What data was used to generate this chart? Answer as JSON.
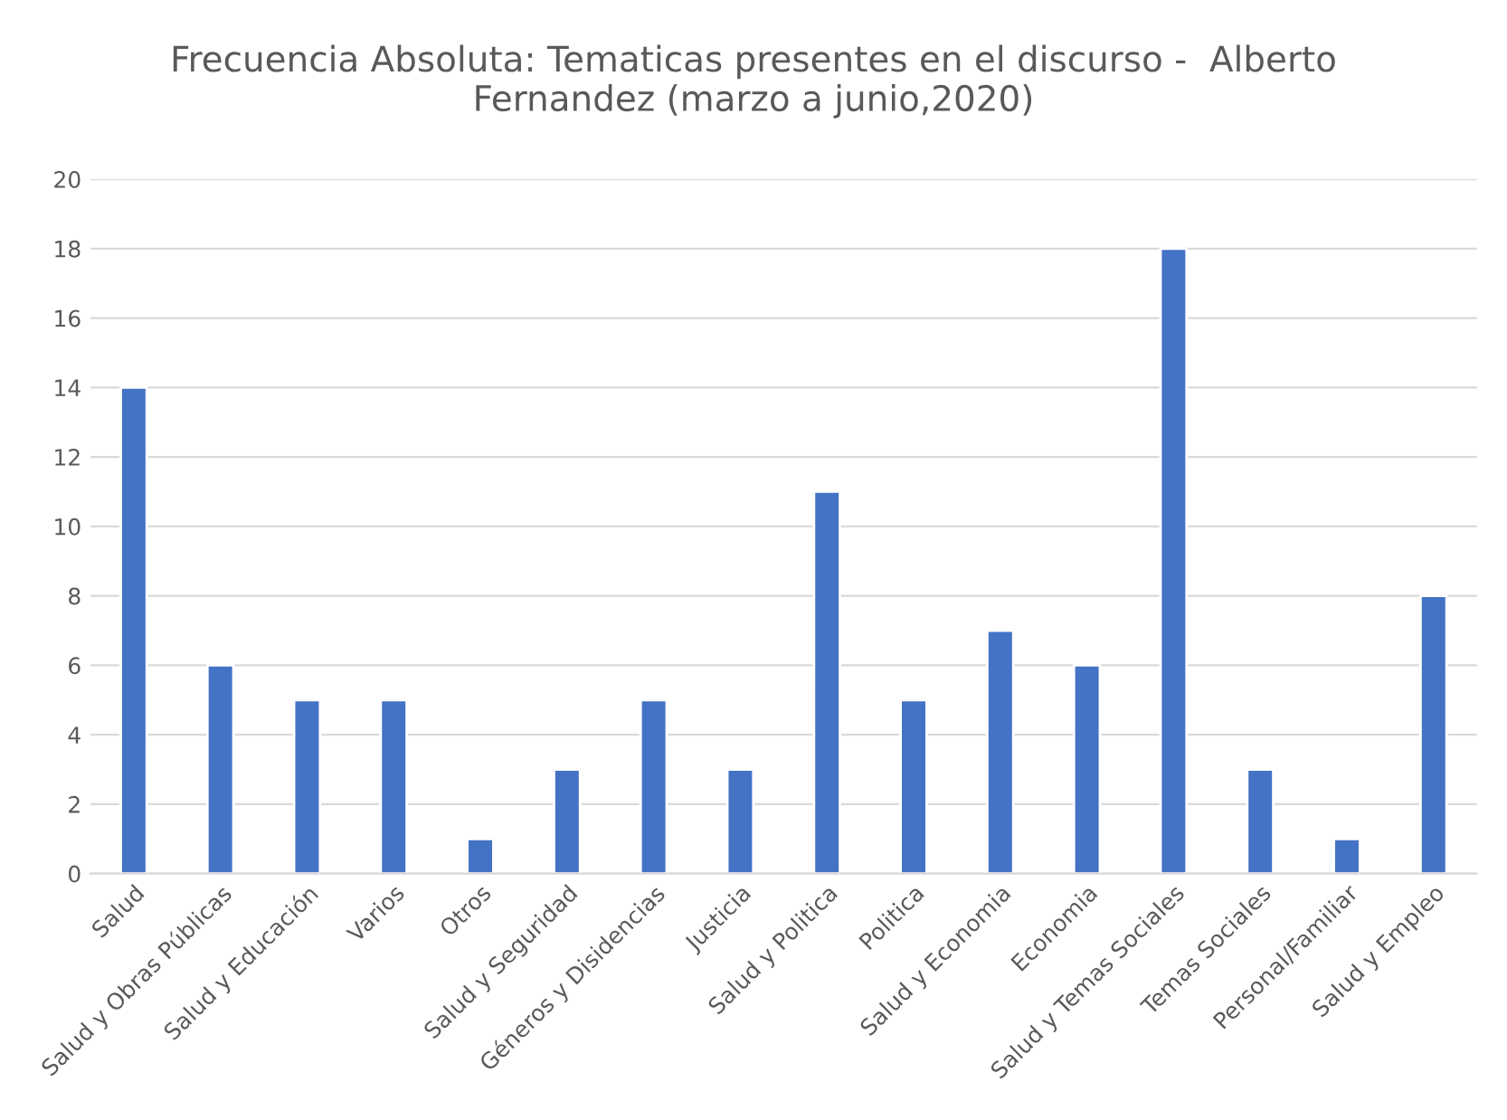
{
  "chart_data": {
    "type": "bar",
    "title": "Frecuencia Absoluta: Tematicas presentes en el discurso -  Alberto\nFernandez (marzo a junio,2020)",
    "categories": [
      "Salud",
      "Salud y Obras Públicas",
      "Salud y Educación",
      "Varios",
      "Otros",
      "Salud y Seguridad",
      "Géneros y Disidencias",
      "Justicia",
      "Salud y Politica",
      "Politica",
      "Salud y Economia",
      "Economia",
      "Salud y Temas Sociales",
      "Temas Sociales",
      "Personal/Familiar",
      "Salud y Empleo"
    ],
    "values": [
      14,
      6,
      5,
      5,
      1,
      3,
      5,
      3,
      11,
      5,
      7,
      6,
      18,
      3,
      1,
      8
    ],
    "color": "#4472c4",
    "ylim": [
      0,
      20
    ],
    "yticks": [
      0,
      2,
      4,
      6,
      8,
      10,
      12,
      14,
      16,
      18,
      20
    ],
    "grid": "y"
  }
}
